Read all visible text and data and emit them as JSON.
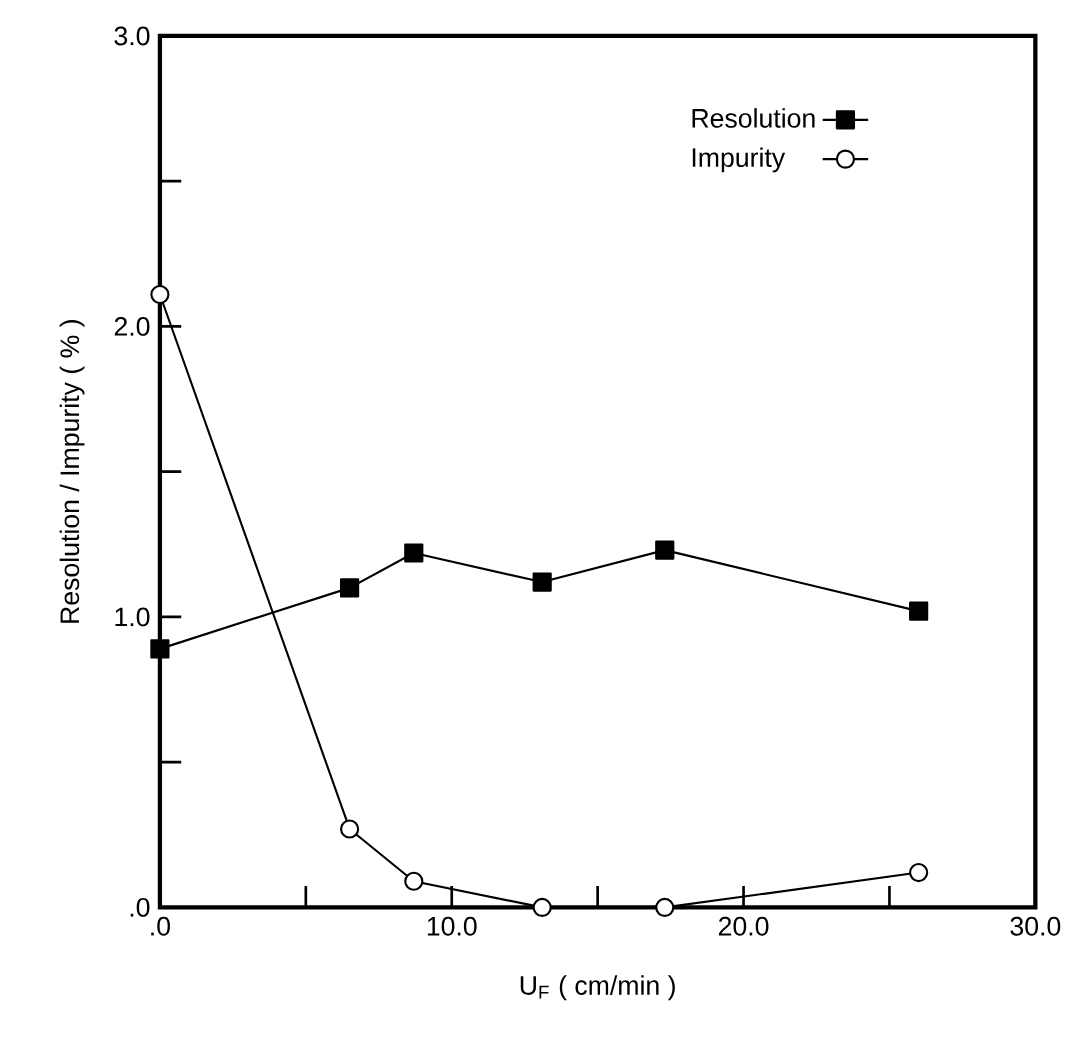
{
  "chart_data": {
    "type": "line",
    "xlabel": "U$_{F}$    ( cm/min )",
    "ylabel": "Resolution / Impurity  ( % )",
    "x": [
      0,
      6.5,
      8.7,
      13.1,
      17.3,
      26.0
    ],
    "series": [
      {
        "name": "Resolution",
        "color": "#000000",
        "marker": "square",
        "values": [
          0.89,
          1.1,
          1.22,
          1.12,
          1.23,
          1.02
        ]
      },
      {
        "name": "Impurity",
        "color": "#000000",
        "marker": "circle",
        "values": [
          2.11,
          0.27,
          0.09,
          0.0,
          0.0,
          0.12
        ]
      }
    ],
    "xlim": [
      0,
      30
    ],
    "ylim": [
      0,
      3
    ],
    "xticks": [
      {
        "value": 0,
        "label": ".0"
      },
      {
        "value": 5,
        "label": null
      },
      {
        "value": 10,
        "label": "10.0"
      },
      {
        "value": 15,
        "label": null
      },
      {
        "value": 20,
        "label": "20.0"
      },
      {
        "value": 25,
        "label": null
      },
      {
        "value": 30,
        "label": "30.0"
      }
    ],
    "yticks": [
      {
        "value": 0,
        "label": ".0"
      },
      {
        "value": 0.5,
        "label": null
      },
      {
        "value": 1,
        "label": "1.0"
      },
      {
        "value": 1.5,
        "label": null
      },
      {
        "value": 2,
        "label": "2.0"
      },
      {
        "value": 2.5,
        "label": null
      },
      {
        "value": 3,
        "label": "3.0"
      }
    ],
    "legend": "top right",
    "grid": false,
    "line_style": "solid"
  }
}
